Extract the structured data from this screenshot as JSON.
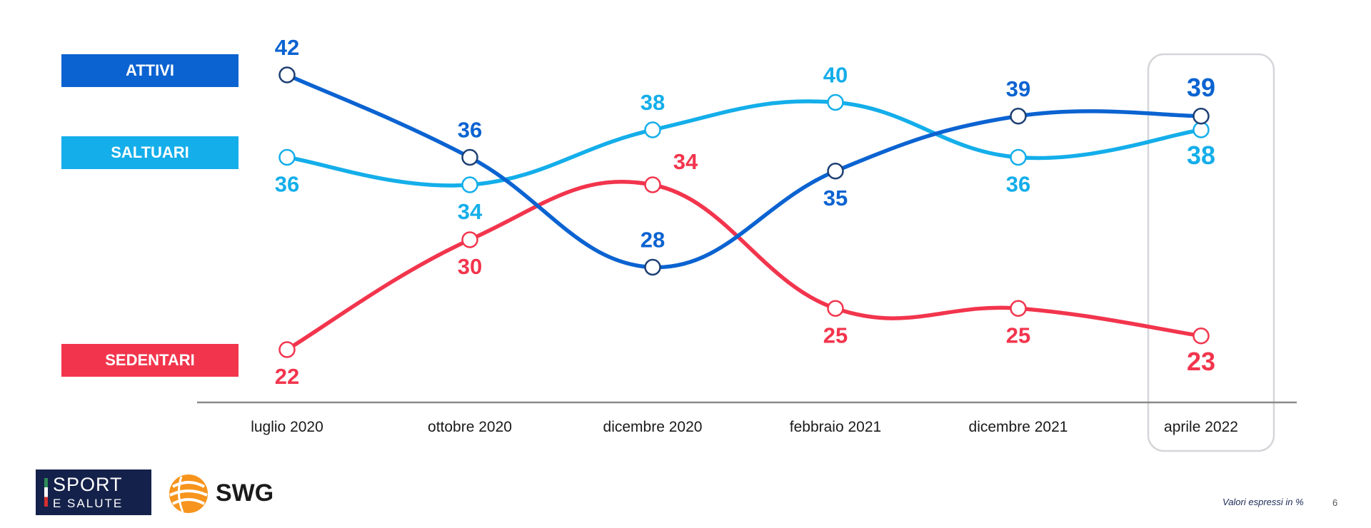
{
  "chart_data": {
    "type": "line",
    "categories": [
      "luglio 2020",
      "ottobre 2020",
      "dicembre 2020",
      "febbraio 2021",
      "dicembre 2021",
      "aprile 2022"
    ],
    "series": [
      {
        "name": "ATTIVI",
        "color": "#0b63d1",
        "values": [
          42,
          36,
          28,
          35,
          39,
          39
        ],
        "label_pos": [
          "above",
          "above",
          "above",
          "below",
          "above",
          "above"
        ]
      },
      {
        "name": "SALTUARI",
        "color": "#14aeea",
        "values": [
          36,
          34,
          38,
          40,
          36,
          38
        ],
        "label_pos": [
          "below",
          "below",
          "above",
          "above",
          "below",
          "below"
        ]
      },
      {
        "name": "SEDENTARI",
        "color": "#f2354d",
        "values": [
          22,
          30,
          34,
          25,
          25,
          23
        ],
        "label_pos": [
          "below",
          "below",
          "above-right",
          "below",
          "below",
          "below"
        ]
      }
    ],
    "highlighted_category": "aprile 2022",
    "y_scale": "linear"
  },
  "footer": {
    "logo_sport_line1": "SPORT",
    "logo_sport_line2": "E SALUTE",
    "logo_swg": "SWG",
    "note": "Valori espressi in %",
    "page": "6"
  }
}
